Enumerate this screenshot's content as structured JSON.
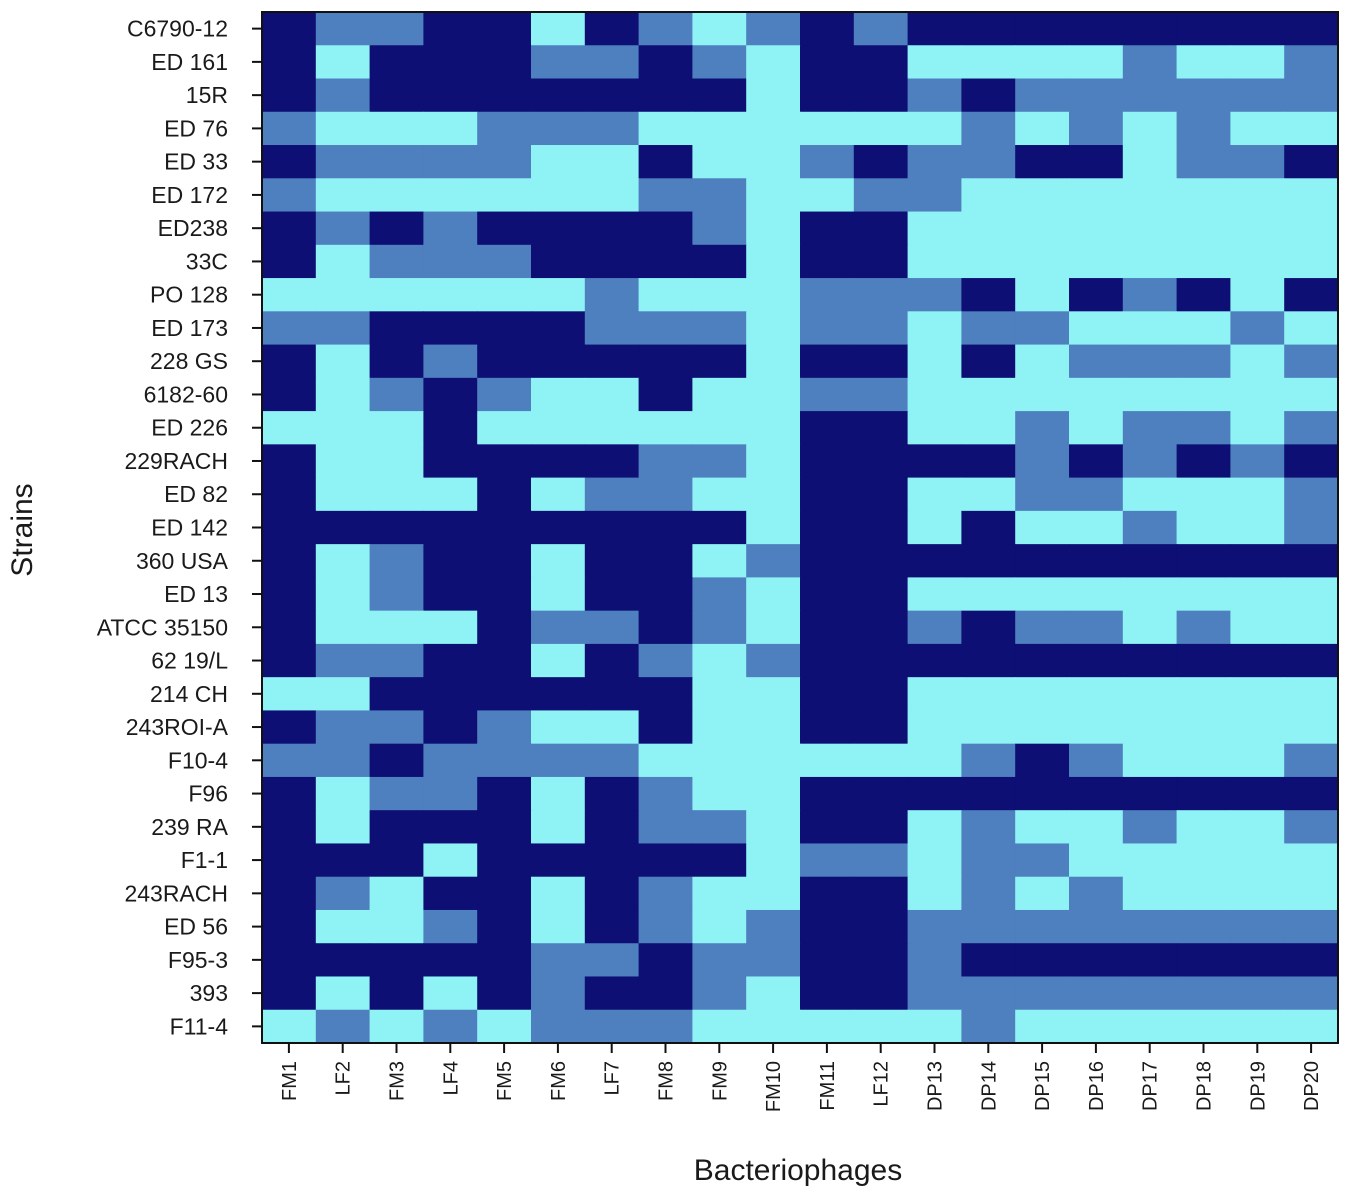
{
  "chart_data": {
    "type": "heatmap",
    "xlabel": "Bacteriophages",
    "ylabel": "Strains",
    "grid": false,
    "colors": {
      "0": "#8ff3f5",
      "1": "#4e7fbf",
      "2": "#0d0f74"
    },
    "x": [
      "FM1",
      "LF2",
      "FM3",
      "LF4",
      "FM5",
      "FM6",
      "LF7",
      "FM8",
      "FM9",
      "FM10",
      "FM11",
      "LF12",
      "DP13",
      "DP14",
      "DP15",
      "DP16",
      "DP17",
      "DP18",
      "DP19",
      "DP20"
    ],
    "y": [
      "C6790-12",
      "ED 161",
      "15R",
      "ED 76",
      "ED 33",
      "ED 172",
      "ED238",
      "33C",
      "PO 128",
      "ED 173",
      "228 GS",
      "6182-60",
      "ED 226",
      "229RACH",
      "ED 82",
      "ED 142",
      "360 USA",
      "ED 13",
      "ATCC 35150",
      "62 19/L",
      "214 CH",
      "243ROI-A",
      "F10-4",
      "F96",
      "239 RA",
      "F1-1",
      "243RACH",
      "ED 56",
      "F95-3",
      "393",
      "F11-4"
    ],
    "values": [
      [
        2,
        1,
        1,
        2,
        2,
        0,
        2,
        1,
        0,
        1,
        2,
        1,
        2,
        2,
        2,
        2,
        2,
        2,
        2,
        2
      ],
      [
        2,
        0,
        2,
        2,
        2,
        1,
        1,
        2,
        1,
        0,
        2,
        2,
        0,
        0,
        0,
        0,
        1,
        0,
        0,
        1
      ],
      [
        2,
        1,
        2,
        2,
        2,
        2,
        2,
        2,
        2,
        0,
        2,
        2,
        1,
        2,
        1,
        1,
        1,
        1,
        1,
        1
      ],
      [
        1,
        0,
        0,
        0,
        1,
        1,
        1,
        0,
        0,
        0,
        0,
        0,
        0,
        1,
        0,
        1,
        0,
        1,
        0,
        0
      ],
      [
        2,
        1,
        1,
        1,
        1,
        0,
        0,
        2,
        0,
        0,
        1,
        2,
        1,
        1,
        2,
        2,
        0,
        1,
        1,
        2
      ],
      [
        1,
        0,
        0,
        0,
        0,
        0,
        0,
        1,
        1,
        0,
        0,
        1,
        1,
        0,
        0,
        0,
        0,
        0,
        0,
        0
      ],
      [
        2,
        1,
        2,
        1,
        2,
        2,
        2,
        2,
        1,
        0,
        2,
        2,
        0,
        0,
        0,
        0,
        0,
        0,
        0,
        0
      ],
      [
        2,
        0,
        1,
        1,
        1,
        2,
        2,
        2,
        2,
        0,
        2,
        2,
        0,
        0,
        0,
        0,
        0,
        0,
        0,
        0
      ],
      [
        0,
        0,
        0,
        0,
        0,
        0,
        1,
        0,
        0,
        0,
        1,
        1,
        1,
        2,
        0,
        2,
        1,
        2,
        0,
        2
      ],
      [
        1,
        1,
        2,
        2,
        2,
        2,
        1,
        1,
        1,
        0,
        1,
        1,
        0,
        1,
        1,
        0,
        0,
        0,
        1,
        0
      ],
      [
        2,
        0,
        2,
        1,
        2,
        2,
        2,
        2,
        2,
        0,
        2,
        2,
        0,
        2,
        0,
        1,
        1,
        1,
        0,
        1
      ],
      [
        2,
        0,
        1,
        2,
        1,
        0,
        0,
        2,
        0,
        0,
        1,
        1,
        0,
        0,
        0,
        0,
        0,
        0,
        0,
        0
      ],
      [
        0,
        0,
        0,
        2,
        0,
        0,
        0,
        0,
        0,
        0,
        2,
        2,
        0,
        0,
        1,
        0,
        1,
        1,
        0,
        1
      ],
      [
        2,
        0,
        0,
        2,
        2,
        2,
        2,
        1,
        1,
        0,
        2,
        2,
        2,
        2,
        1,
        2,
        1,
        2,
        1,
        2
      ],
      [
        2,
        0,
        0,
        0,
        2,
        0,
        1,
        1,
        0,
        0,
        2,
        2,
        0,
        0,
        1,
        1,
        0,
        0,
        0,
        1
      ],
      [
        2,
        2,
        2,
        2,
        2,
        2,
        2,
        2,
        2,
        0,
        2,
        2,
        0,
        2,
        0,
        0,
        1,
        0,
        0,
        1
      ],
      [
        2,
        0,
        1,
        2,
        2,
        0,
        2,
        2,
        0,
        1,
        2,
        2,
        2,
        2,
        2,
        2,
        2,
        2,
        2,
        2
      ],
      [
        2,
        0,
        1,
        2,
        2,
        0,
        2,
        2,
        1,
        0,
        2,
        2,
        0,
        0,
        0,
        0,
        0,
        0,
        0,
        0
      ],
      [
        2,
        0,
        0,
        0,
        2,
        1,
        1,
        2,
        1,
        0,
        2,
        2,
        1,
        2,
        1,
        1,
        0,
        1,
        0,
        0
      ],
      [
        2,
        1,
        1,
        2,
        2,
        0,
        2,
        1,
        0,
        1,
        2,
        2,
        2,
        2,
        2,
        2,
        2,
        2,
        2,
        2
      ],
      [
        0,
        0,
        2,
        2,
        2,
        2,
        2,
        2,
        0,
        0,
        2,
        2,
        0,
        0,
        0,
        0,
        0,
        0,
        0,
        0
      ],
      [
        2,
        1,
        1,
        2,
        1,
        0,
        0,
        2,
        0,
        0,
        2,
        2,
        0,
        0,
        0,
        0,
        0,
        0,
        0,
        0
      ],
      [
        1,
        1,
        2,
        1,
        1,
        1,
        1,
        0,
        0,
        0,
        0,
        0,
        0,
        1,
        2,
        1,
        0,
        0,
        0,
        1
      ],
      [
        2,
        0,
        1,
        1,
        2,
        0,
        2,
        1,
        0,
        0,
        2,
        2,
        2,
        2,
        2,
        2,
        2,
        2,
        2,
        2
      ],
      [
        2,
        0,
        2,
        2,
        2,
        0,
        2,
        1,
        1,
        0,
        2,
        2,
        0,
        1,
        0,
        0,
        1,
        0,
        0,
        1
      ],
      [
        2,
        2,
        2,
        0,
        2,
        2,
        2,
        2,
        2,
        0,
        1,
        1,
        0,
        1,
        1,
        0,
        0,
        0,
        0,
        0
      ],
      [
        2,
        1,
        0,
        2,
        2,
        0,
        2,
        1,
        0,
        0,
        2,
        2,
        0,
        1,
        0,
        1,
        0,
        0,
        0,
        0
      ],
      [
        2,
        0,
        0,
        1,
        2,
        0,
        2,
        1,
        0,
        1,
        2,
        2,
        1,
        1,
        1,
        1,
        1,
        1,
        1,
        1
      ],
      [
        2,
        2,
        2,
        2,
        2,
        1,
        1,
        2,
        1,
        1,
        2,
        2,
        1,
        2,
        2,
        2,
        2,
        2,
        2,
        2
      ],
      [
        2,
        0,
        2,
        0,
        2,
        1,
        2,
        2,
        1,
        0,
        2,
        2,
        1,
        1,
        1,
        1,
        1,
        1,
        1,
        1
      ],
      [
        0,
        1,
        0,
        1,
        0,
        1,
        1,
        1,
        0,
        0,
        0,
        0,
        0,
        1,
        0,
        0,
        0,
        0,
        0,
        0
      ]
    ]
  }
}
